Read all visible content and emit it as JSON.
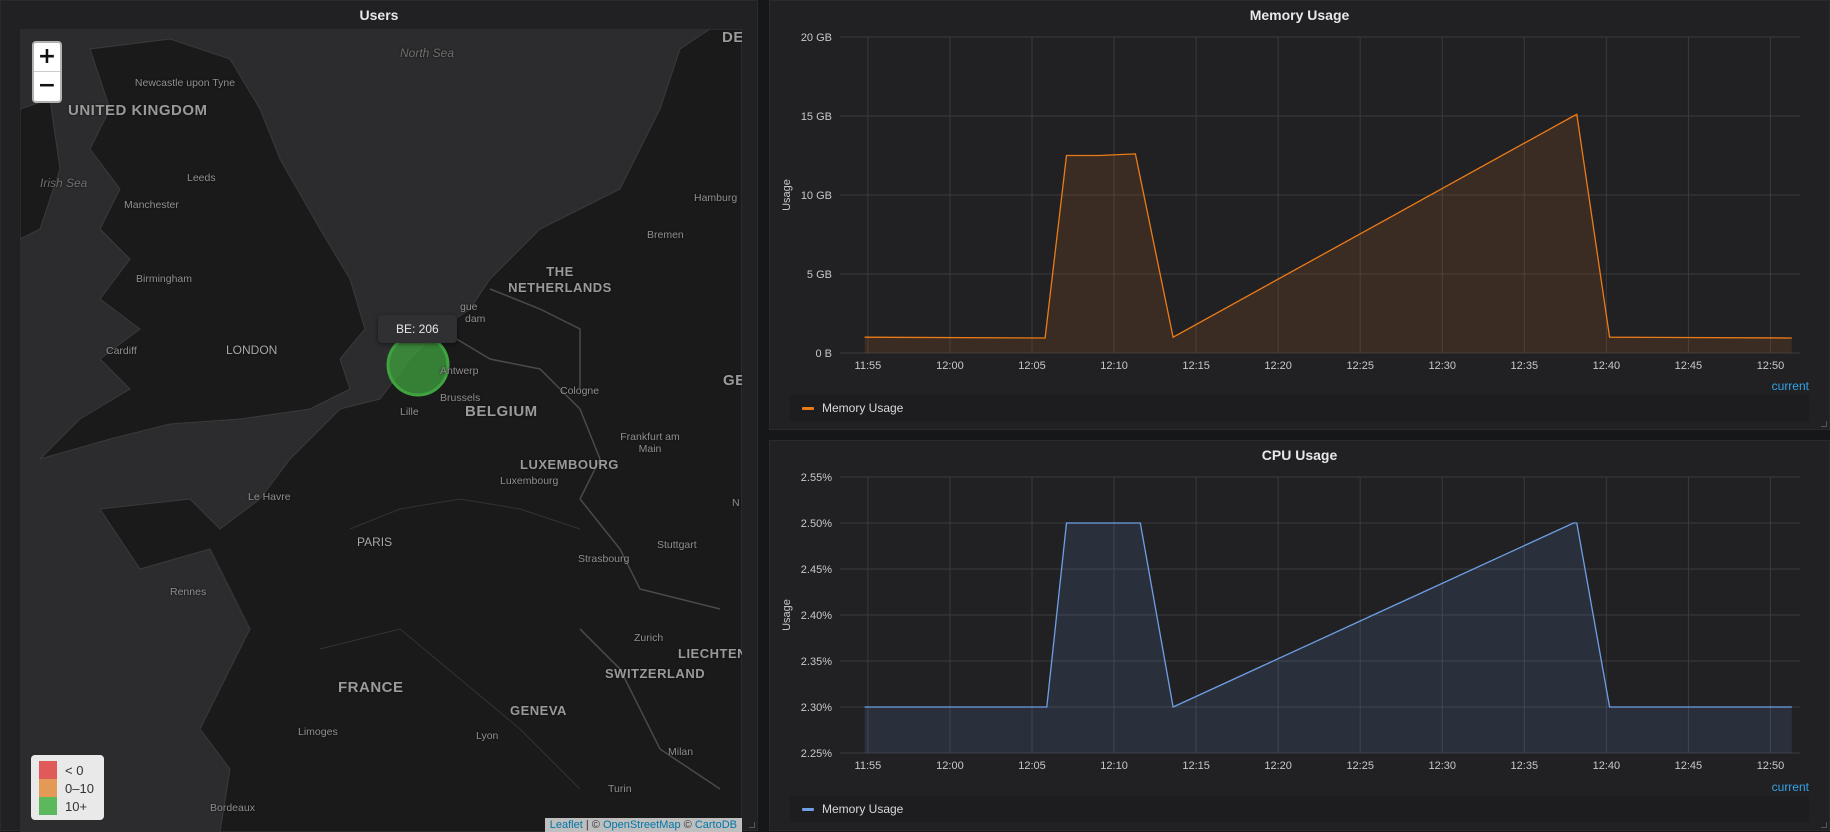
{
  "users_panel": {
    "title": "Users",
    "zoom_in": "+",
    "zoom_out": "−",
    "tooltip": "BE: 206",
    "marker_color": "#3fa33f",
    "legend": [
      {
        "label": "< 0",
        "color": "#e05a5a"
      },
      {
        "label": "0–10",
        "color": "#e39a56"
      },
      {
        "label": "10+",
        "color": "#5cb85c"
      }
    ],
    "attribution": {
      "leaflet": "Leaflet",
      "sep": " | © ",
      "osm": "OpenStreetMap",
      "sep2": " © ",
      "carto": "CartoDB"
    },
    "map_labels": {
      "united_kingdom": "UNITED KINGDOM",
      "north_sea": "North Sea",
      "irish_sea": "Irish Sea",
      "newcastle": "Newcastle upon Tyne",
      "leeds": "Leeds",
      "manchester": "Manchester",
      "birmingham": "Birmingham",
      "cardiff": "Cardiff",
      "london": "LONDON",
      "the_netherlands": "THE NETHERLANDS",
      "hamburg": "Hamburg",
      "bremen": "Bremen",
      "antwerp": "Antwerp",
      "brussels": "Brussels",
      "lille": "Lille",
      "belgium": "BELGIUM",
      "cologne": "Cologne",
      "frankfurt": "Frankfurt am Main",
      "luxembourg_country": "LUXEMBOURG",
      "luxembourg_city": "Luxembourg",
      "le_havre": "Le Havre",
      "paris": "PARIS",
      "stuttgart": "Stuttgart",
      "strasbourg": "Strasbourg",
      "rennes": "Rennes",
      "zurich": "Zurich",
      "liechtenstein": "LIECHTENS",
      "switzerland": "SWITZERLAND",
      "france": "FRANCE",
      "geneva": "GENEVA",
      "limoges": "Limoges",
      "lyon": "Lyon",
      "milan": "Milan",
      "turin": "Turin",
      "bordeaux": "Bordeaux",
      "de_edge": "DE",
      "ge_edge": "GE",
      "hague": "gue",
      "dam": "dam",
      "n_edge": "N"
    }
  },
  "memory_panel": {
    "title": "Memory Usage",
    "current_label": "current",
    "legend_label": "Memory Usage",
    "color": "#eb7b18",
    "chart_data": {
      "type": "area",
      "title": "Memory Usage",
      "ylabel": "Usage",
      "ytick_labels": [
        "0 B",
        "5 GB",
        "10 GB",
        "15 GB",
        "20 GB"
      ],
      "yticks": [
        0,
        5,
        10,
        15,
        20
      ],
      "ylim": [
        0,
        20
      ],
      "xtick_labels": [
        "11:55",
        "12:00",
        "12:05",
        "12:10",
        "12:15",
        "12:20",
        "12:25",
        "12:30",
        "12:35",
        "12:40",
        "12:45",
        "12:50"
      ],
      "xticks_min": [
        -5,
        0,
        5,
        10,
        15,
        20,
        25,
        30,
        35,
        40,
        45,
        50
      ],
      "xlim_min": [
        -6.7,
        51.8
      ],
      "x_min": [
        -5.2,
        5.8,
        7.1,
        9.1,
        11.3,
        13.6,
        38.0,
        38.2,
        40.2,
        51.3
      ],
      "values_gb": [
        1.0,
        0.95,
        12.5,
        12.5,
        12.6,
        1.0,
        15.0,
        15.1,
        1.0,
        0.95
      ],
      "series": [
        {
          "name": "Memory Usage"
        }
      ]
    }
  },
  "cpu_panel": {
    "title": "CPU Usage",
    "current_label": "current",
    "legend_label": "Memory Usage",
    "color": "#6e9fe4",
    "chart_data": {
      "type": "area",
      "title": "CPU Usage",
      "ylabel": "Usage",
      "ytick_labels": [
        "2.25%",
        "2.30%",
        "2.35%",
        "2.40%",
        "2.45%",
        "2.50%",
        "2.55%"
      ],
      "yticks": [
        2.25,
        2.3,
        2.35,
        2.4,
        2.45,
        2.5,
        2.55
      ],
      "ylim": [
        2.25,
        2.55
      ],
      "xtick_labels": [
        "11:55",
        "12:00",
        "12:05",
        "12:10",
        "12:15",
        "12:20",
        "12:25",
        "12:30",
        "12:35",
        "12:40",
        "12:45",
        "12:50"
      ],
      "xticks_min": [
        -5,
        0,
        5,
        10,
        15,
        20,
        25,
        30,
        35,
        40,
        45,
        50
      ],
      "xlim_min": [
        -6.7,
        51.8
      ],
      "x_min": [
        -5.2,
        5.9,
        7.1,
        9.3,
        11.6,
        13.6,
        38.0,
        38.2,
        40.2,
        51.3
      ],
      "values_pct": [
        2.3,
        2.3,
        2.5,
        2.5,
        2.5,
        2.3,
        2.5,
        2.5,
        2.3,
        2.3
      ],
      "series": [
        {
          "name": "Memory Usage"
        }
      ]
    }
  }
}
